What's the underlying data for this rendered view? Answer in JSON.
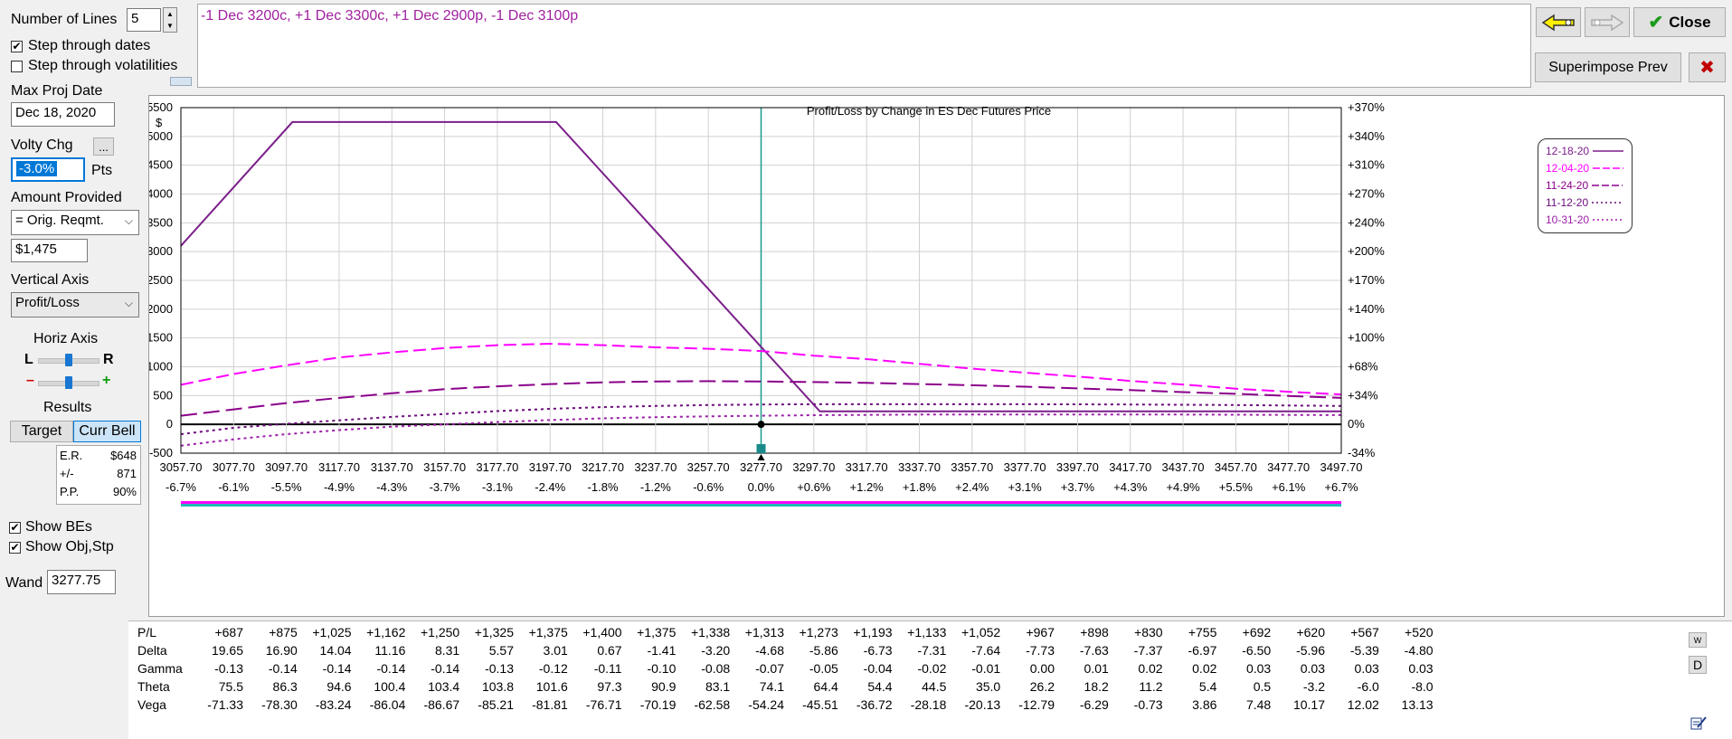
{
  "left_panel": {
    "number_of_lines_label": "Number of Lines",
    "number_of_lines_value": "5",
    "step_dates_label": "Step through dates",
    "step_dates_checked": true,
    "step_vols_label": "Step through volatilities",
    "step_vols_checked": false,
    "max_proj_date_label": "Max Proj Date",
    "max_proj_date_value": "Dec 18, 2020",
    "volty_chg_label": "Volty Chg",
    "volty_chg_value": "-3.0%",
    "volty_chg_unit": "Pts",
    "ellipsis_label": "...",
    "amount_provided_label": "Amount Provided",
    "amount_provided_select": "= Orig. Reqmt.",
    "amount_value": "$1,475",
    "vertical_axis_label": "Vertical Axis",
    "vertical_axis_select": "Profit/Loss",
    "horiz_axis_label": "Horiz Axis",
    "slider_l": "L",
    "slider_r": "R",
    "slider_minus": "–",
    "slider_plus": "+",
    "results_label": "Results",
    "target_label": "Target",
    "curr_bell_label": "Curr Bell",
    "er_label": "E.R.",
    "er_value": "$648",
    "pm_label": "+/-",
    "pm_value": "871",
    "pp_label": "P.P.",
    "pp_value": "90%",
    "show_bes_label": "Show BEs",
    "show_bes_checked": true,
    "show_obj_label": "Show Obj,Stp",
    "show_obj_checked": true,
    "wand_label": "Wand",
    "wand_value": "3277.75"
  },
  "position_text": "-1 Dec 3200c, +1 Dec 3300c, +1 Dec 2900p, -1 Dec 3100p",
  "top_buttons": {
    "close_label": "Close",
    "superimpose_label": "Superimpose Prev"
  },
  "icons": {
    "check": "✔",
    "close_x": "✖",
    "up": "▲",
    "down": "▼",
    "dropdown": "⌵"
  },
  "chart_data": {
    "type": "line",
    "title": "Profit/Loss by Change in ES Dec Futures Price",
    "ylabel": "$",
    "ylim": [
      -500,
      5500
    ],
    "y_ticks": [
      -500,
      0,
      500,
      1000,
      1500,
      2000,
      2500,
      3000,
      3500,
      4000,
      4500,
      5000,
      5500
    ],
    "y2_ticks": [
      "-34%",
      "0%",
      "+34%",
      "+68%",
      "+100%",
      "+140%",
      "+170%",
      "+200%",
      "+240%",
      "+270%",
      "+310%",
      "+340%",
      "+370%"
    ],
    "x_ticks": [
      "3057.70",
      "3077.70",
      "3097.70",
      "3117.70",
      "3137.70",
      "3157.70",
      "3177.70",
      "3197.70",
      "3217.70",
      "3237.70",
      "3257.70",
      "3277.70",
      "3297.70",
      "3317.70",
      "3337.70",
      "3357.70",
      "3377.70",
      "3397.70",
      "3417.70",
      "3437.70",
      "3457.70",
      "3477.70",
      "3497.70"
    ],
    "x_pct": [
      "-6.7%",
      "-6.1%",
      "-5.5%",
      "-4.9%",
      "-4.3%",
      "-3.7%",
      "-3.1%",
      "-2.4%",
      "-1.8%",
      "-1.2%",
      "-0.6%",
      "0.0%",
      "+0.6%",
      "+1.2%",
      "+1.8%",
      "+2.4%",
      "+3.1%",
      "+3.7%",
      "+4.3%",
      "+4.9%",
      "+5.5%",
      "+6.1%",
      "+6.7%"
    ],
    "x": [
      3057.7,
      3077.7,
      3097.7,
      3117.7,
      3137.7,
      3157.7,
      3177.7,
      3197.7,
      3217.7,
      3237.7,
      3257.7,
      3277.7,
      3297.7,
      3317.7,
      3337.7,
      3357.7,
      3377.7,
      3397.7,
      3417.7,
      3437.7,
      3457.7,
      3477.7,
      3497.7
    ],
    "xlim": [
      3057.7,
      3497.7
    ],
    "current_price": 3277.7,
    "series": [
      {
        "name": "12-18-20",
        "color": "#7b1f8a",
        "dash": "solid",
        "points": [
          [
            3057.7,
            3100
          ],
          [
            3100,
            5250
          ],
          [
            3200,
            5250
          ],
          [
            3300,
            225
          ],
          [
            3497.7,
            225
          ]
        ]
      },
      {
        "name": "12-04-20",
        "color": "#ff00ff",
        "dash": "dashed",
        "points": [
          [
            3057.7,
            687
          ],
          [
            3077.7,
            875
          ],
          [
            3097.7,
            1025
          ],
          [
            3117.7,
            1162
          ],
          [
            3137.7,
            1250
          ],
          [
            3157.7,
            1325
          ],
          [
            3177.7,
            1375
          ],
          [
            3197.7,
            1400
          ],
          [
            3217.7,
            1375
          ],
          [
            3237.7,
            1338
          ],
          [
            3257.7,
            1313
          ],
          [
            3277.7,
            1273
          ],
          [
            3297.7,
            1193
          ],
          [
            3317.7,
            1133
          ],
          [
            3337.7,
            1052
          ],
          [
            3357.7,
            967
          ],
          [
            3377.7,
            898
          ],
          [
            3397.7,
            830
          ],
          [
            3417.7,
            755
          ],
          [
            3437.7,
            692
          ],
          [
            3457.7,
            620
          ],
          [
            3477.7,
            567
          ],
          [
            3497.7,
            520
          ]
        ]
      },
      {
        "name": "11-24-20",
        "color": "#8b008b",
        "dash": "longdash",
        "points": [
          [
            3057.7,
            150
          ],
          [
            3077.7,
            260
          ],
          [
            3097.7,
            370
          ],
          [
            3117.7,
            460
          ],
          [
            3137.7,
            540
          ],
          [
            3157.7,
            610
          ],
          [
            3177.7,
            660
          ],
          [
            3197.7,
            700
          ],
          [
            3217.7,
            730
          ],
          [
            3237.7,
            745
          ],
          [
            3257.7,
            750
          ],
          [
            3277.7,
            745
          ],
          [
            3297.7,
            735
          ],
          [
            3317.7,
            720
          ],
          [
            3337.7,
            700
          ],
          [
            3357.7,
            680
          ],
          [
            3377.7,
            655
          ],
          [
            3397.7,
            625
          ],
          [
            3417.7,
            595
          ],
          [
            3437.7,
            560
          ],
          [
            3457.7,
            530
          ],
          [
            3477.7,
            495
          ],
          [
            3497.7,
            460
          ]
        ]
      },
      {
        "name": "11-12-20",
        "color": "#6a0a7a",
        "dash": "dotted",
        "points": [
          [
            3057.7,
            -170
          ],
          [
            3077.7,
            -60
          ],
          [
            3097.7,
            10
          ],
          [
            3117.7,
            70
          ],
          [
            3137.7,
            130
          ],
          [
            3157.7,
            180
          ],
          [
            3177.7,
            230
          ],
          [
            3197.7,
            270
          ],
          [
            3217.7,
            300
          ],
          [
            3237.7,
            320
          ],
          [
            3257.7,
            335
          ],
          [
            3277.7,
            345
          ],
          [
            3297.7,
            350
          ],
          [
            3317.7,
            350
          ],
          [
            3337.7,
            350
          ],
          [
            3357.7,
            350
          ],
          [
            3377.7,
            350
          ],
          [
            3397.7,
            348
          ],
          [
            3417.7,
            345
          ],
          [
            3437.7,
            340
          ],
          [
            3457.7,
            335
          ],
          [
            3477.7,
            328
          ],
          [
            3497.7,
            320
          ]
        ]
      },
      {
        "name": "10-31-20",
        "color": "#9b1fa8",
        "dash": "dotted",
        "points": [
          [
            3057.7,
            -370
          ],
          [
            3077.7,
            -260
          ],
          [
            3097.7,
            -170
          ],
          [
            3117.7,
            -100
          ],
          [
            3137.7,
            -40
          ],
          [
            3157.7,
            0
          ],
          [
            3177.7,
            40
          ],
          [
            3197.7,
            75
          ],
          [
            3217.7,
            105
          ],
          [
            3237.7,
            125
          ],
          [
            3257.7,
            140
          ],
          [
            3277.7,
            150
          ],
          [
            3297.7,
            160
          ],
          [
            3317.7,
            165
          ],
          [
            3337.7,
            170
          ],
          [
            3357.7,
            172
          ],
          [
            3377.7,
            173
          ],
          [
            3397.7,
            173
          ],
          [
            3417.7,
            172
          ],
          [
            3437.7,
            170
          ],
          [
            3457.7,
            168
          ],
          [
            3477.7,
            165
          ],
          [
            3497.7,
            162
          ]
        ]
      }
    ],
    "legend_entries": [
      "12-18-20",
      "12-04-20",
      "11-24-20",
      "11-12-20",
      "10-31-20"
    ],
    "legend_placement": "top-right"
  },
  "greeks_table": {
    "row_labels": [
      "P/L",
      "Delta",
      "Gamma",
      "Theta",
      "Vega"
    ],
    "rows": [
      [
        "+687",
        "+875",
        "+1,025",
        "+1,162",
        "+1,250",
        "+1,325",
        "+1,375",
        "+1,400",
        "+1,375",
        "+1,338",
        "+1,313",
        "+1,273",
        "+1,193",
        "+1,133",
        "+1,052",
        "+967",
        "+898",
        "+830",
        "+755",
        "+692",
        "+620",
        "+567",
        "+520"
      ],
      [
        "19.65",
        "16.90",
        "14.04",
        "11.16",
        "8.31",
        "5.57",
        "3.01",
        "0.67",
        "-1.41",
        "-3.20",
        "-4.68",
        "-5.86",
        "-6.73",
        "-7.31",
        "-7.64",
        "-7.73",
        "-7.63",
        "-7.37",
        "-6.97",
        "-6.50",
        "-5.96",
        "-5.39",
        "-4.80"
      ],
      [
        "-0.13",
        "-0.14",
        "-0.14",
        "-0.14",
        "-0.14",
        "-0.13",
        "-0.12",
        "-0.11",
        "-0.10",
        "-0.08",
        "-0.07",
        "-0.05",
        "-0.04",
        "-0.02",
        "-0.01",
        "0.00",
        "0.01",
        "0.02",
        "0.02",
        "0.03",
        "0.03",
        "0.03",
        "0.03"
      ],
      [
        "75.5",
        "86.3",
        "94.6",
        "100.4",
        "103.4",
        "103.8",
        "101.6",
        "97.3",
        "90.9",
        "83.1",
        "74.1",
        "64.4",
        "54.4",
        "44.5",
        "35.0",
        "26.2",
        "18.2",
        "11.2",
        "5.4",
        "0.5",
        "-3.2",
        "-6.0",
        "-8.0"
      ],
      [
        "-71.33",
        "-78.30",
        "-83.24",
        "-86.04",
        "-86.67",
        "-85.21",
        "-81.81",
        "-76.71",
        "-70.19",
        "-62.58",
        "-54.24",
        "-45.51",
        "-36.72",
        "-28.18",
        "-20.13",
        "-12.79",
        "-6.29",
        "-0.73",
        "3.86",
        "7.48",
        "10.17",
        "12.02",
        "13.13"
      ]
    ],
    "w_button": "W",
    "d_button": "D"
  }
}
